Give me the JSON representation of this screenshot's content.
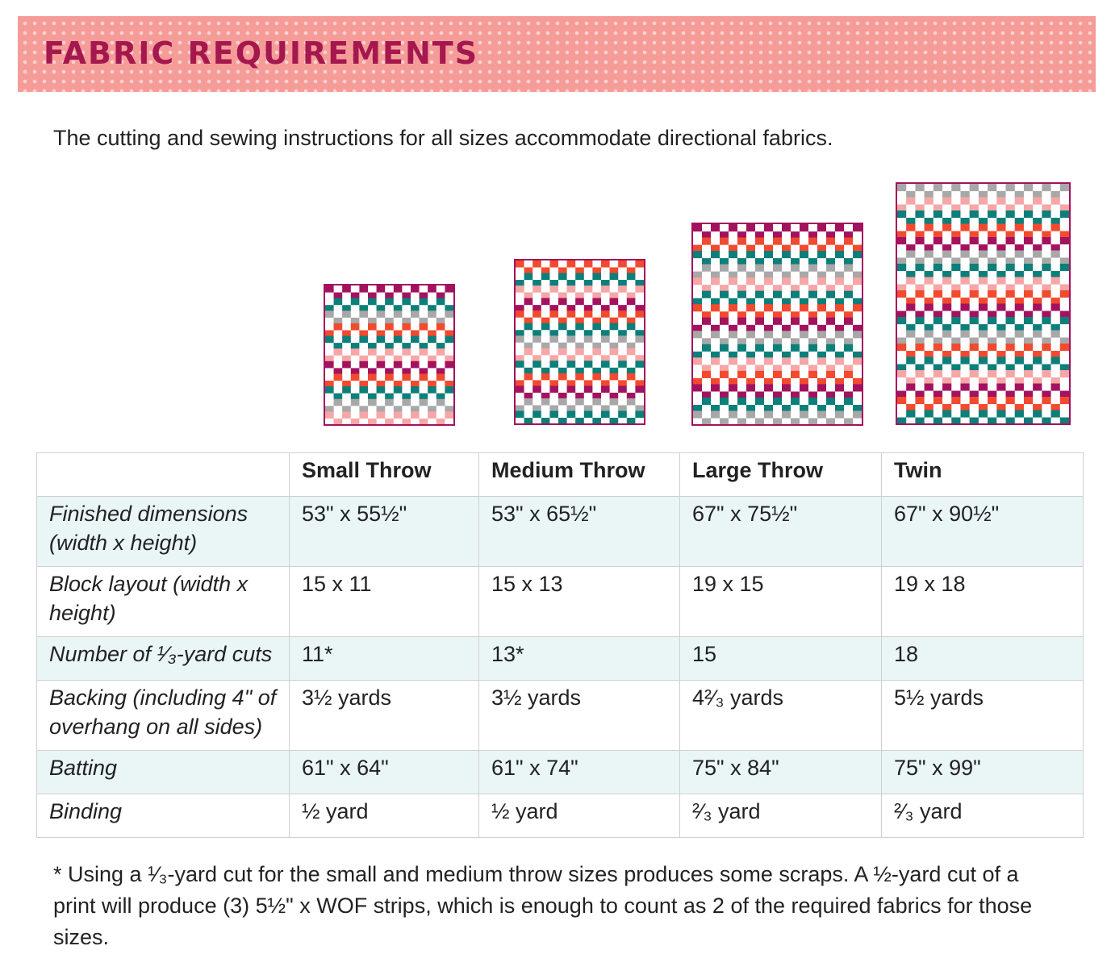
{
  "header": {
    "title": "FABRIC REQUIREMENTS"
  },
  "intro": "The cutting and sewing instructions for all sizes accommodate directional fabrics.",
  "colors": {
    "banner": "#f59c98",
    "title": "#a5174f",
    "magenta": "#a3125f",
    "teal": "#0b7f7a",
    "orange": "#f24a2e",
    "pink": "#f6a6a6",
    "gray": "#a8a8a8",
    "table_shade": "#eaf6f6"
  },
  "quilts": [
    {
      "name": "Small Throw",
      "columns": 15,
      "rows": 11
    },
    {
      "name": "Medium Throw",
      "columns": 15,
      "rows": 13
    },
    {
      "name": "Large Throw",
      "columns": 19,
      "rows": 15
    },
    {
      "name": "Twin",
      "columns": 19,
      "rows": 18
    }
  ],
  "table": {
    "headers": [
      "",
      "Small Throw",
      "Medium Throw",
      "Large Throw",
      "Twin"
    ],
    "rows": [
      {
        "label": "Finished dimensions (width x height)",
        "values": [
          "53\" x 55½\"",
          "53\" x 65½\"",
          "67\" x 75½\"",
          "67\" x 90½\""
        ]
      },
      {
        "label": "Block layout (width x height)",
        "values": [
          "15 x 11",
          "15 x 13",
          "19 x 15",
          "19 x 18"
        ]
      },
      {
        "label": "Number of ¹⁄₃-yard cuts",
        "values": [
          "11*",
          "13*",
          "15",
          "18"
        ]
      },
      {
        "label": "Backing (including 4\" of overhang on all sides)",
        "values": [
          "3½ yards",
          "3½ yards",
          "4²⁄₃ yards",
          "5½ yards"
        ]
      },
      {
        "label": "Batting",
        "values": [
          "61\" x 64\"",
          "61\" x 74\"",
          "75\" x 84\"",
          "75\" x 99\""
        ]
      },
      {
        "label": "Binding",
        "values": [
          "½ yard",
          "½ yard",
          "²⁄₃ yard",
          "²⁄₃ yard"
        ]
      }
    ]
  },
  "footnote": "* Using a ¹⁄₃-yard cut for the small and medium throw sizes produces some scraps. A ½-yard cut of a print will produce (3) 5½\" x WOF strips, which is enough to count as 2 of the required fabrics for those sizes."
}
